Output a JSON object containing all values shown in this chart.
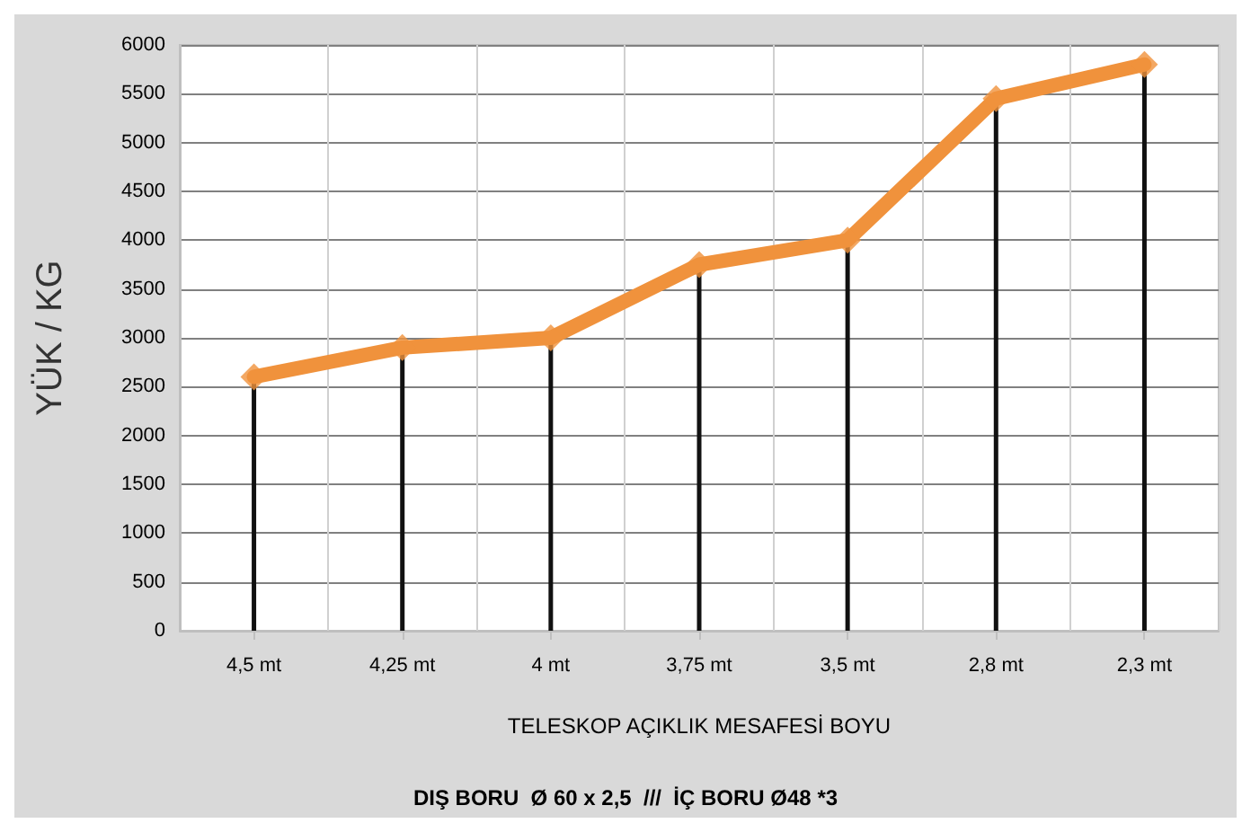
{
  "chart_data": {
    "type": "line",
    "ylabel": "YÜK / KG",
    "xlabel": "TELESKOP AÇIKLIK MESAFESİ BOYU",
    "annotations": [
      "DIŞ BORU  Ø 60 x 2,5  ///  İÇ BORU Ø48 *3"
    ],
    "categories": [
      "4,5 mt",
      "4,25 mt",
      "4 mt",
      "3,75 mt",
      "3,5 mt",
      "2,8 mt",
      "2,3 mt"
    ],
    "series": [
      {
        "color": "#f0923c",
        "marker": "none",
        "values": [
          2600,
          2900,
          3000,
          3750,
          4000,
          5450,
          5800
        ]
      },
      {
        "type": "lollipop",
        "color": "#f0923c",
        "marker": "diamond",
        "values": [
          2600,
          2900,
          3000,
          3750,
          4000,
          5450,
          5800
        ]
      }
    ],
    "ylim": [
      0,
      6000
    ],
    "yticks": [
      0,
      500,
      1000,
      1500,
      2000,
      2500,
      3000,
      3500,
      4000,
      4500,
      5000,
      5500,
      6000
    ],
    "grid": true,
    "line_style": "solid"
  }
}
